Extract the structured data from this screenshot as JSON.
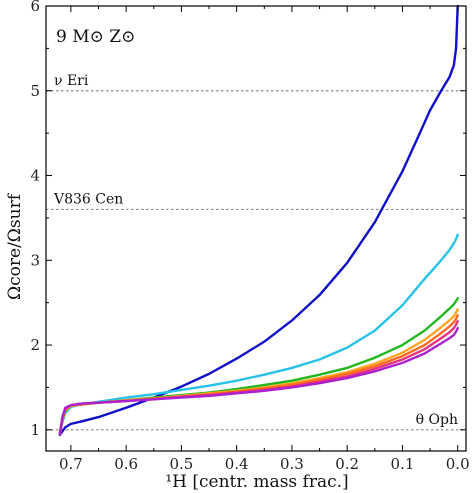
{
  "chart_data": {
    "type": "line",
    "title": "9 M⊙  Z⊙",
    "xlabel": "¹H [centr. mass frac.]",
    "ylabel": "Ωcore/Ωsurf",
    "xlim": [
      0.745,
      -0.015
    ],
    "ylim": [
      0.75,
      6.0
    ],
    "x_reversed": true,
    "xticks": [
      0.7,
      0.6,
      0.5,
      0.4,
      0.3,
      0.2,
      0.1,
      0.0
    ],
    "xtick_labels": [
      "0.7",
      "0.6",
      "0.5",
      "0.4",
      "0.3",
      "0.2",
      "0.1",
      "0.0"
    ],
    "yticks": [
      1,
      2,
      3,
      4,
      5,
      6
    ],
    "ytick_labels": [
      "1",
      "2",
      "3",
      "4",
      "5",
      "6"
    ],
    "grid": false,
    "reference_lines": [
      {
        "label": "ν Eri",
        "y": 5.0
      },
      {
        "label": "V836 Cen",
        "y": 3.6
      },
      {
        "label": "θ Oph",
        "y": 1.0
      }
    ],
    "series": [
      {
        "color": "#1010c8",
        "x": [
          0.72,
          0.71,
          0.7,
          0.68,
          0.65,
          0.6,
          0.55,
          0.5,
          0.45,
          0.4,
          0.35,
          0.3,
          0.25,
          0.2,
          0.15,
          0.1,
          0.07,
          0.05,
          0.03,
          0.015,
          0.007,
          0.003,
          0.0
        ],
        "y": [
          0.94,
          1.03,
          1.07,
          1.1,
          1.15,
          1.26,
          1.38,
          1.51,
          1.66,
          1.84,
          2.04,
          2.29,
          2.59,
          2.97,
          3.45,
          4.05,
          4.48,
          4.77,
          5.0,
          5.16,
          5.3,
          5.5,
          6.0
        ]
      },
      {
        "color": "#29c1e8",
        "x": [
          0.72,
          0.715,
          0.71,
          0.7,
          0.68,
          0.65,
          0.6,
          0.55,
          0.5,
          0.45,
          0.4,
          0.35,
          0.3,
          0.25,
          0.2,
          0.15,
          0.1,
          0.06,
          0.03,
          0.015,
          0.007,
          0.003,
          0.0
        ],
        "y": [
          0.95,
          1.1,
          1.2,
          1.27,
          1.3,
          1.33,
          1.38,
          1.42,
          1.47,
          1.52,
          1.58,
          1.65,
          1.73,
          1.83,
          1.97,
          2.17,
          2.47,
          2.78,
          3.0,
          3.12,
          3.2,
          3.25,
          3.3
        ]
      },
      {
        "color": "#22b61f",
        "x": [
          0.72,
          0.715,
          0.71,
          0.7,
          0.68,
          0.65,
          0.6,
          0.55,
          0.5,
          0.45,
          0.4,
          0.35,
          0.3,
          0.25,
          0.2,
          0.15,
          0.1,
          0.06,
          0.03,
          0.015,
          0.007,
          0.003,
          0.0
        ],
        "y": [
          0.95,
          1.12,
          1.22,
          1.28,
          1.3,
          1.32,
          1.35,
          1.38,
          1.41,
          1.44,
          1.48,
          1.53,
          1.58,
          1.65,
          1.73,
          1.85,
          2.0,
          2.17,
          2.34,
          2.43,
          2.48,
          2.52,
          2.55
        ]
      },
      {
        "color": "#ffa625",
        "x": [
          0.72,
          0.715,
          0.71,
          0.7,
          0.68,
          0.65,
          0.6,
          0.55,
          0.5,
          0.45,
          0.4,
          0.35,
          0.3,
          0.25,
          0.2,
          0.15,
          0.1,
          0.06,
          0.03,
          0.015,
          0.007,
          0.003,
          0.0
        ],
        "y": [
          0.95,
          1.13,
          1.23,
          1.28,
          1.3,
          1.32,
          1.35,
          1.37,
          1.4,
          1.43,
          1.46,
          1.5,
          1.55,
          1.61,
          1.68,
          1.78,
          1.91,
          2.06,
          2.21,
          2.29,
          2.34,
          2.38,
          2.42
        ]
      },
      {
        "color": "#ff6a1e",
        "x": [
          0.72,
          0.715,
          0.71,
          0.7,
          0.68,
          0.65,
          0.6,
          0.55,
          0.5,
          0.45,
          0.4,
          0.35,
          0.3,
          0.25,
          0.2,
          0.15,
          0.1,
          0.06,
          0.03,
          0.015,
          0.007,
          0.003,
          0.0
        ],
        "y": [
          0.95,
          1.14,
          1.24,
          1.29,
          1.3,
          1.32,
          1.34,
          1.37,
          1.39,
          1.42,
          1.45,
          1.49,
          1.53,
          1.59,
          1.66,
          1.75,
          1.87,
          2.0,
          2.14,
          2.22,
          2.27,
          2.31,
          2.35
        ]
      },
      {
        "color": "#e7327c",
        "x": [
          0.72,
          0.715,
          0.71,
          0.7,
          0.68,
          0.65,
          0.6,
          0.55,
          0.5,
          0.45,
          0.4,
          0.35,
          0.3,
          0.25,
          0.2,
          0.15,
          0.1,
          0.06,
          0.03,
          0.015,
          0.007,
          0.003,
          0.0
        ],
        "y": [
          0.95,
          1.15,
          1.25,
          1.29,
          1.31,
          1.32,
          1.34,
          1.36,
          1.39,
          1.41,
          1.44,
          1.47,
          1.51,
          1.57,
          1.63,
          1.72,
          1.83,
          1.95,
          2.08,
          2.15,
          2.2,
          2.24,
          2.28
        ]
      },
      {
        "color": "#aa22d0",
        "x": [
          0.72,
          0.715,
          0.71,
          0.7,
          0.68,
          0.65,
          0.6,
          0.55,
          0.5,
          0.45,
          0.4,
          0.35,
          0.3,
          0.25,
          0.2,
          0.15,
          0.1,
          0.06,
          0.03,
          0.015,
          0.007,
          0.003,
          0.0
        ],
        "y": [
          0.95,
          1.16,
          1.26,
          1.29,
          1.31,
          1.32,
          1.34,
          1.36,
          1.38,
          1.4,
          1.43,
          1.46,
          1.5,
          1.55,
          1.61,
          1.69,
          1.79,
          1.9,
          2.02,
          2.08,
          2.12,
          2.16,
          2.2
        ]
      }
    ]
  }
}
